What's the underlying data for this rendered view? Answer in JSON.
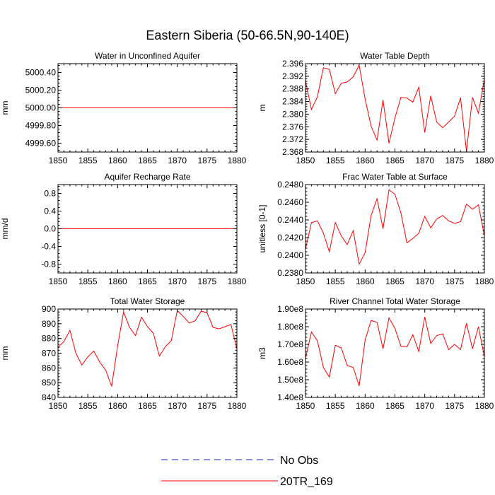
{
  "title": "Eastern Siberia (50-66.5N,90-140E)",
  "colors": {
    "model": "#ff0000",
    "obs": "#2020c0",
    "axes": "#000000"
  },
  "legend": [
    {
      "label": "No Obs",
      "style": "dashed",
      "color": "#2020c0"
    },
    {
      "label": "20TR_169",
      "style": "solid",
      "color": "#ff0000"
    }
  ],
  "chart_data": [
    {
      "type": "line",
      "title": "Water in Unconfined Aquifer",
      "ylabel": "mm",
      "xlim": [
        1850,
        1880
      ],
      "xticks": [
        1850,
        1855,
        1860,
        1865,
        1870,
        1875,
        1880
      ],
      "ylim": [
        4999.5,
        5000.5
      ],
      "yticks": [
        4999.6,
        4999.8,
        5000.0,
        5000.2,
        5000.4
      ],
      "ytick_labels": [
        "4999.60",
        "4999.80",
        "5000.00",
        "5000.20",
        "5000.40"
      ],
      "series": [
        {
          "name": "20TR_169",
          "x": [
            1850,
            1851,
            1852,
            1853,
            1854,
            1855,
            1856,
            1857,
            1858,
            1859,
            1860,
            1861,
            1862,
            1863,
            1864,
            1865,
            1866,
            1867,
            1868,
            1869,
            1870,
            1871,
            1872,
            1873,
            1874,
            1875,
            1876,
            1877,
            1878,
            1879,
            1880
          ],
          "y": [
            5000,
            5000,
            5000,
            5000,
            5000,
            5000,
            5000,
            5000,
            5000,
            5000,
            5000,
            5000,
            5000,
            5000,
            5000,
            5000,
            5000,
            5000,
            5000,
            5000,
            5000,
            5000,
            5000,
            5000,
            5000,
            5000,
            5000,
            5000,
            5000,
            5000,
            5000
          ]
        }
      ]
    },
    {
      "type": "line",
      "title": "Water Table Depth",
      "ylabel": "m",
      "xlim": [
        1850,
        1880
      ],
      "xticks": [
        1850,
        1855,
        1860,
        1865,
        1870,
        1875,
        1880
      ],
      "ylim": [
        2.368,
        2.396
      ],
      "yticks": [
        2.368,
        2.372,
        2.376,
        2.38,
        2.384,
        2.388,
        2.392,
        2.396
      ],
      "ytick_labels": [
        "2.368",
        "2.372",
        "2.376",
        "2.380",
        "2.384",
        "2.388",
        "2.392",
        "2.396"
      ],
      "series": [
        {
          "name": "20TR_169",
          "x": [
            1850,
            1851,
            1852,
            1853,
            1854,
            1855,
            1856,
            1857,
            1858,
            1859,
            1860,
            1861,
            1862,
            1863,
            1864,
            1865,
            1866,
            1867,
            1868,
            1869,
            1870,
            1871,
            1872,
            1873,
            1874,
            1875,
            1876,
            1877,
            1878,
            1879,
            1880
          ],
          "y": [
            2.3905,
            2.3815,
            2.3855,
            2.3947,
            2.3942,
            2.3865,
            2.3898,
            2.3902,
            2.3918,
            2.3955,
            2.3848,
            2.3762,
            2.3718,
            2.3845,
            2.3708,
            2.3788,
            2.3853,
            2.3851,
            2.3838,
            2.3885,
            2.3742,
            2.3858,
            2.3775,
            2.3757,
            2.3775,
            2.3794,
            2.3852,
            2.3682,
            2.3853,
            2.3803,
            2.3912
          ]
        }
      ]
    },
    {
      "type": "line",
      "title": "Aquifer Recharge Rate",
      "ylabel": "mm/d",
      "xlim": [
        1850,
        1880
      ],
      "xticks": [
        1850,
        1855,
        1860,
        1865,
        1870,
        1875,
        1880
      ],
      "ylim": [
        -1,
        1
      ],
      "yticks": [
        -0.8,
        -0.4,
        0.0,
        0.4,
        0.8
      ],
      "ytick_labels": [
        "-0.8",
        "-0.4",
        "0.0",
        "0.4",
        "0.8"
      ],
      "series": [
        {
          "name": "20TR_169",
          "x": [
            1850,
            1851,
            1852,
            1853,
            1854,
            1855,
            1856,
            1857,
            1858,
            1859,
            1860,
            1861,
            1862,
            1863,
            1864,
            1865,
            1866,
            1867,
            1868,
            1869,
            1870,
            1871,
            1872,
            1873,
            1874,
            1875,
            1876,
            1877,
            1878,
            1879,
            1880
          ],
          "y": [
            0,
            0,
            0,
            0,
            0,
            0,
            0,
            0,
            0,
            0,
            0,
            0,
            0,
            0,
            0,
            0,
            0,
            0,
            0,
            0,
            0,
            0,
            0,
            0,
            0,
            0,
            0,
            0,
            0,
            0,
            0
          ]
        }
      ]
    },
    {
      "type": "line",
      "title": "Frac Water Table at Surface",
      "ylabel": "unitless [0-1]",
      "xlim": [
        1850,
        1880
      ],
      "xticks": [
        1850,
        1855,
        1860,
        1865,
        1870,
        1875,
        1880
      ],
      "ylim": [
        0.238,
        0.248
      ],
      "yticks": [
        0.238,
        0.24,
        0.242,
        0.244,
        0.246,
        0.248
      ],
      "ytick_labels": [
        "0.2380",
        "0.2400",
        "0.2420",
        "0.2440",
        "0.2460",
        "0.2480"
      ],
      "series": [
        {
          "name": "20TR_169",
          "x": [
            1850,
            1851,
            1852,
            1853,
            1854,
            1855,
            1856,
            1857,
            1858,
            1859,
            1860,
            1861,
            1862,
            1863,
            1864,
            1865,
            1866,
            1867,
            1868,
            1869,
            1870,
            1871,
            1872,
            1873,
            1874,
            1875,
            1876,
            1877,
            1878,
            1879,
            1880
          ],
          "y": [
            0.2407,
            0.2437,
            0.2439,
            0.2425,
            0.2404,
            0.2437,
            0.2422,
            0.2412,
            0.2428,
            0.239,
            0.2403,
            0.2445,
            0.2464,
            0.243,
            0.2474,
            0.2469,
            0.2448,
            0.2414,
            0.2419,
            0.2425,
            0.2444,
            0.2431,
            0.2441,
            0.2445,
            0.2439,
            0.2436,
            0.2438,
            0.2458,
            0.2452,
            0.2457,
            0.2422
          ]
        }
      ]
    },
    {
      "type": "line",
      "title": "Total Water Storage",
      "ylabel": "mm",
      "xlim": [
        1850,
        1880
      ],
      "xticks": [
        1850,
        1855,
        1860,
        1865,
        1870,
        1875,
        1880
      ],
      "ylim": [
        840,
        900
      ],
      "yticks": [
        840,
        850,
        860,
        870,
        880,
        890,
        900
      ],
      "ytick_labels": [
        "840",
        "850",
        "860",
        "870",
        "880",
        "890",
        "900"
      ],
      "series": [
        {
          "name": "20TR_169",
          "x": [
            1850,
            1851,
            1852,
            1853,
            1854,
            1855,
            1856,
            1857,
            1858,
            1859,
            1860,
            1861,
            1862,
            1863,
            1864,
            1865,
            1866,
            1867,
            1868,
            1869,
            1870,
            1871,
            1872,
            1873,
            1874,
            1875,
            1876,
            1877,
            1878,
            1879,
            1880
          ],
          "y": [
            874,
            878,
            885.5,
            870,
            862,
            867.5,
            871.5,
            864,
            858.5,
            847.5,
            875,
            898,
            887.5,
            882,
            894.5,
            888,
            883.5,
            868,
            874.5,
            878.5,
            899,
            895,
            890.5,
            892,
            898.5,
            897.5,
            887.5,
            886.5,
            888,
            889.5,
            873
          ]
        }
      ]
    },
    {
      "type": "line",
      "title": "River Channel Total Water Storage",
      "ylabel": "m3",
      "xlim": [
        1850,
        1880
      ],
      "xticks": [
        1850,
        1855,
        1860,
        1865,
        1870,
        1875,
        1880
      ],
      "ylim": [
        140000000,
        190000000
      ],
      "yticks": [
        140000000,
        150000000,
        160000000,
        170000000,
        180000000,
        190000000
      ],
      "ytick_labels": [
        "1.40e8",
        "1.50e8",
        "1.60e8",
        "1.70e8",
        "1.80e8",
        "1.90e8"
      ],
      "series": [
        {
          "name": "20TR_169",
          "x": [
            1850,
            1851,
            1852,
            1853,
            1854,
            1855,
            1856,
            1857,
            1858,
            1859,
            1860,
            1861,
            1862,
            1863,
            1864,
            1865,
            1866,
            1867,
            1868,
            1869,
            1870,
            1871,
            1872,
            1873,
            1874,
            1875,
            1876,
            1877,
            1878,
            1879,
            1880
          ],
          "y": [
            162000000,
            177000000,
            172000000,
            157000000,
            151500000,
            169500000,
            168000000,
            158000000,
            157000000,
            146500000,
            172500000,
            183500000,
            182500000,
            167500000,
            185000000,
            179000000,
            169000000,
            168500000,
            175500000,
            166000000,
            185500000,
            170500000,
            175000000,
            176000000,
            167000000,
            170000000,
            167000000,
            182000000,
            167500000,
            180000000,
            163000000
          ]
        }
      ]
    }
  ]
}
